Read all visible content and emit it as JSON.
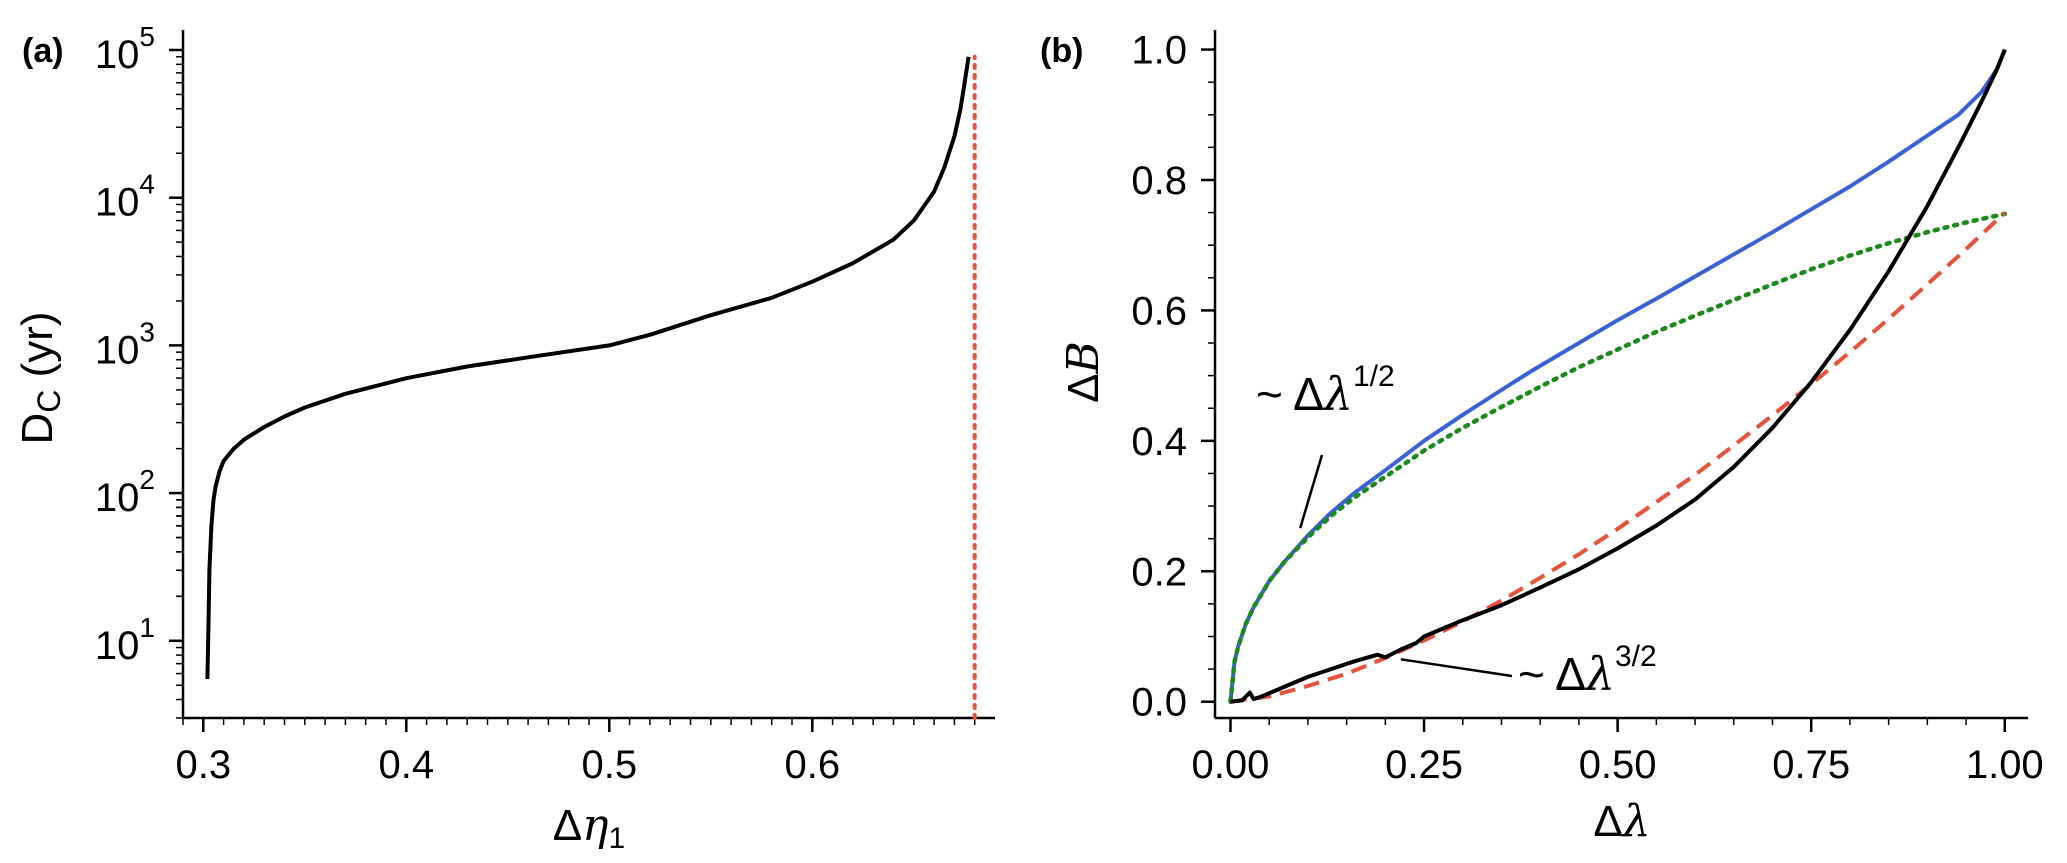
{
  "chart_data": [
    {
      "panel": "(a)",
      "type": "line",
      "xlabel": "Δη₁",
      "ylabel": "D_C (yr)",
      "ylabel_main": "D",
      "ylabel_sub": "C",
      "ylabel_unit": " (yr)",
      "xlabel_main": "Δ",
      "xlabel_var": "η",
      "xlabel_sub": "1",
      "xlim": [
        0.29,
        0.69
      ],
      "ylim": [
        3.0,
        100000
      ],
      "yscale": "log",
      "grid": false,
      "xticks": [
        {
          "value": 0.3,
          "label": "0.3"
        },
        {
          "value": 0.4,
          "label": "0.4"
        },
        {
          "value": 0.5,
          "label": "0.5"
        },
        {
          "value": 0.6,
          "label": "0.6"
        }
      ],
      "yticks": [
        {
          "value": 10,
          "base": "10",
          "exp": "1"
        },
        {
          "value": 100,
          "base": "10",
          "exp": "2"
        },
        {
          "value": 1000,
          "base": "10",
          "exp": "3"
        },
        {
          "value": 10000,
          "base": "10",
          "exp": "4"
        },
        {
          "value": 100000,
          "base": "10",
          "exp": "5"
        }
      ],
      "series": [
        {
          "color": "#000000",
          "style": "solid",
          "x": [
            0.302,
            0.3025,
            0.303,
            0.304,
            0.305,
            0.306,
            0.308,
            0.31,
            0.315,
            0.32,
            0.33,
            0.34,
            0.35,
            0.37,
            0.4,
            0.43,
            0.46,
            0.5,
            0.52,
            0.55,
            0.58,
            0.6,
            0.62,
            0.64,
            0.65,
            0.66,
            0.665,
            0.67,
            0.673,
            0.675,
            0.677
          ],
          "y": [
            5.5,
            12,
            30,
            60,
            90,
            110,
            140,
            165,
            200,
            230,
            280,
            330,
            380,
            470,
            600,
            720,
            830,
            1000,
            1180,
            1600,
            2100,
            2700,
            3600,
            5200,
            7000,
            11000,
            16000,
            26000,
            40000,
            60000,
            90000
          ]
        },
        {
          "color": "#e8513a",
          "style": "dotted",
          "x": [
            0.68,
            0.68
          ],
          "y": [
            3.0,
            90000
          ]
        }
      ]
    },
    {
      "panel": "(b)",
      "type": "line",
      "xlabel": "Δλ",
      "ylabel": "ΔB",
      "xlabel_main": "Δ",
      "xlabel_var": "λ",
      "ylabel_main": "Δ",
      "ylabel_var": "B",
      "xlim": [
        -0.02,
        1.03
      ],
      "ylim": [
        -0.025,
        1.03
      ],
      "grid": false,
      "xticks": [
        {
          "value": 0.0,
          "label": "0.00"
        },
        {
          "value": 0.25,
          "label": "0.25"
        },
        {
          "value": 0.5,
          "label": "0.50"
        },
        {
          "value": 0.75,
          "label": "0.75"
        },
        {
          "value": 1.0,
          "label": "1.00"
        }
      ],
      "yticks": [
        {
          "value": 0.0,
          "label": "0.0"
        },
        {
          "value": 0.2,
          "label": "0.2"
        },
        {
          "value": 0.4,
          "label": "0.4"
        },
        {
          "value": 0.6,
          "label": "0.6"
        },
        {
          "value": 0.8,
          "label": "0.8"
        },
        {
          "value": 1.0,
          "label": "1.0"
        }
      ],
      "annotations": [
        {
          "prefix": "~ Δ",
          "var": "λ",
          "exp": "1/2",
          "x": 0.09,
          "y": 0.26
        },
        {
          "prefix": "~ Δ",
          "var": "λ",
          "exp": "3/2",
          "x": 0.22,
          "y": 0.065
        }
      ],
      "series": [
        {
          "color": "#3a62d6",
          "style": "solid",
          "x": [
            0.0,
            0.005,
            0.01,
            0.02,
            0.03,
            0.05,
            0.07,
            0.1,
            0.13,
            0.16,
            0.2,
            0.25,
            0.3,
            0.35,
            0.39,
            0.45,
            0.5,
            0.55,
            0.6,
            0.65,
            0.7,
            0.75,
            0.8,
            0.85,
            0.9,
            0.94,
            0.97,
            0.99,
            1.0
          ],
          "y": [
            0.0,
            0.06,
            0.085,
            0.12,
            0.145,
            0.185,
            0.215,
            0.255,
            0.29,
            0.32,
            0.355,
            0.4,
            0.44,
            0.478,
            0.508,
            0.55,
            0.585,
            0.618,
            0.652,
            0.686,
            0.72,
            0.755,
            0.79,
            0.828,
            0.868,
            0.9,
            0.935,
            0.97,
            1.0
          ]
        },
        {
          "color": "#1a8a1a",
          "style": "dotted",
          "x": [
            0.0,
            0.005,
            0.01,
            0.02,
            0.03,
            0.05,
            0.07,
            0.1,
            0.13,
            0.16,
            0.2,
            0.25,
            0.3,
            0.35,
            0.4,
            0.45,
            0.5,
            0.55,
            0.6,
            0.65,
            0.7,
            0.75,
            0.8,
            0.85,
            0.9,
            0.95,
            1.0
          ],
          "y": [
            0.0,
            0.06,
            0.085,
            0.12,
            0.145,
            0.185,
            0.215,
            0.252,
            0.285,
            0.313,
            0.345,
            0.385,
            0.42,
            0.452,
            0.483,
            0.513,
            0.54,
            0.567,
            0.592,
            0.616,
            0.64,
            0.663,
            0.684,
            0.703,
            0.72,
            0.735,
            0.748
          ]
        },
        {
          "color": "#e8513a",
          "style": "dashed",
          "x": [
            0.0,
            0.05,
            0.1,
            0.15,
            0.2,
            0.25,
            0.3,
            0.35,
            0.4,
            0.45,
            0.5,
            0.55,
            0.6,
            0.65,
            0.7,
            0.75,
            0.8,
            0.85,
            0.9,
            0.95,
            1.0
          ],
          "y": [
            0.0,
            0.008,
            0.024,
            0.043,
            0.067,
            0.094,
            0.123,
            0.155,
            0.19,
            0.226,
            0.265,
            0.306,
            0.348,
            0.393,
            0.439,
            0.487,
            0.536,
            0.587,
            0.64,
            0.694,
            0.75
          ]
        },
        {
          "color": "#000000",
          "style": "solid",
          "x": [
            0.0,
            0.015,
            0.025,
            0.03,
            0.04,
            0.06,
            0.08,
            0.1,
            0.13,
            0.16,
            0.19,
            0.2,
            0.22,
            0.24,
            0.25,
            0.27,
            0.3,
            0.35,
            0.4,
            0.45,
            0.5,
            0.55,
            0.6,
            0.65,
            0.7,
            0.75,
            0.8,
            0.85,
            0.9,
            0.94,
            0.97,
            0.99,
            1.0
          ],
          "y": [
            0.0,
            0.002,
            0.014,
            0.004,
            0.008,
            0.018,
            0.028,
            0.038,
            0.05,
            0.062,
            0.072,
            0.068,
            0.08,
            0.09,
            0.1,
            0.11,
            0.125,
            0.148,
            0.175,
            0.203,
            0.235,
            0.27,
            0.31,
            0.36,
            0.42,
            0.49,
            0.57,
            0.66,
            0.76,
            0.85,
            0.92,
            0.97,
            1.0
          ]
        }
      ]
    }
  ]
}
